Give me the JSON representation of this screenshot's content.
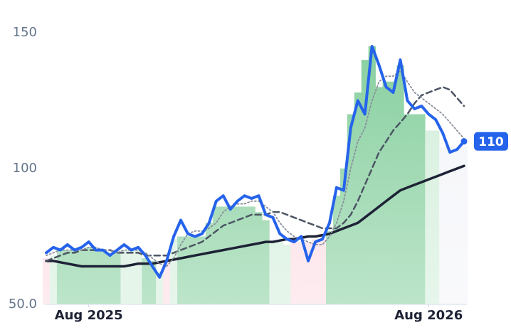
{
  "chart_data": {
    "type": "line",
    "categories": [
      null,
      null,
      null,
      null,
      null,
      null,
      "Aug 2025",
      null,
      null,
      null,
      null,
      null,
      null,
      null,
      null,
      null,
      null,
      null,
      null,
      null,
      null,
      null,
      null,
      null,
      null,
      null,
      null,
      null,
      null,
      null,
      null,
      null,
      null,
      null,
      null,
      null,
      null,
      null,
      null,
      null,
      null,
      null,
      null,
      null,
      null,
      null,
      null,
      null,
      null,
      null,
      null,
      null,
      null,
      null,
      "Aug 2026",
      null,
      null,
      null,
      null,
      null
    ],
    "ylim": [
      50,
      150
    ],
    "yticks": [
      {
        "value": 50,
        "label": "50.0"
      },
      100,
      150
    ],
    "series": [
      {
        "color": "#2563eb",
        "style": "solid-thick",
        "values": [
          69,
          71,
          70,
          72,
          70,
          71,
          73,
          70,
          70,
          68,
          70,
          72,
          70,
          71,
          68,
          64,
          60,
          66,
          75,
          81,
          76,
          75,
          76,
          80,
          88,
          90,
          85,
          88,
          90,
          89,
          90,
          83,
          82,
          76,
          74,
          73,
          75,
          66,
          73,
          74,
          80,
          93,
          92,
          115,
          125,
          120,
          145,
          138,
          130,
          128,
          140,
          125,
          122,
          123,
          120,
          118,
          113,
          106,
          107,
          110
        ]
      },
      {
        "color": "#8a8f9c",
        "style": "dotted",
        "values": [
          68,
          69,
          70,
          70,
          70,
          70,
          71,
          71,
          70,
          70,
          69,
          70,
          70,
          70,
          69,
          67,
          65,
          64,
          67,
          72,
          76,
          77,
          77,
          78,
          80,
          84,
          86,
          87,
          87,
          88,
          88,
          86,
          84,
          80,
          77,
          75,
          74,
          73,
          72,
          72,
          75,
          80,
          88,
          100,
          110,
          115,
          125,
          132,
          134,
          134,
          136,
          132,
          128,
          126,
          124,
          122,
          120,
          117,
          114,
          111
        ]
      },
      {
        "color": "#4b5563",
        "style": "dashed",
        "values": [
          66,
          67,
          68,
          69,
          69,
          70,
          70,
          70,
          70,
          70,
          69,
          69,
          69,
          69,
          68,
          68,
          68,
          68,
          69,
          70,
          71,
          72,
          73,
          75,
          77,
          79,
          80,
          81,
          82,
          83,
          83,
          83,
          84,
          84,
          83,
          82,
          81,
          80,
          79,
          78,
          78,
          78,
          80,
          83,
          88,
          94,
          100,
          106,
          110,
          114,
          117,
          120,
          124,
          127,
          128,
          129,
          130,
          129,
          126,
          123
        ]
      },
      {
        "color": "#1e2235",
        "style": "solid",
        "values": [
          66,
          66,
          65.5,
          65,
          64.5,
          64,
          64,
          64,
          64,
          64,
          64,
          64,
          64.5,
          65,
          65,
          65,
          65.5,
          66,
          66.5,
          67,
          67.5,
          68,
          68.5,
          69,
          69.5,
          70,
          70.5,
          71,
          71.5,
          72,
          72.5,
          73,
          73,
          73.5,
          74,
          74,
          74.5,
          75,
          75,
          75.5,
          76,
          77,
          78,
          79,
          80,
          82,
          84,
          86,
          88,
          90,
          92,
          93,
          94,
          95,
          96,
          97,
          98,
          99,
          100,
          101
        ]
      }
    ],
    "bars": {
      "values": [
        67,
        68,
        70,
        70,
        70,
        70,
        71,
        70,
        70,
        68,
        69,
        70,
        70,
        70,
        67,
        66,
        62,
        66,
        74,
        75,
        75,
        75,
        75,
        80,
        86,
        86,
        86,
        86,
        86,
        86,
        84,
        81,
        73,
        73,
        72,
        73,
        73,
        73,
        74,
        74,
        77,
        90,
        100,
        120,
        128,
        140,
        145,
        130,
        132,
        132,
        138,
        120,
        120,
        120,
        114,
        114,
        108,
        108,
        108,
        108
      ],
      "colors": [
        "#fcdce3",
        "#d3eedb",
        "#86cf9e",
        "#86cf9e",
        "#86cf9e",
        "#86cf9e",
        "#86cf9e",
        "#86cf9e",
        "#86cf9e",
        "#86cf9e",
        "#86cf9e",
        "#d3eedb",
        "#d3eedb",
        "#d3eedb",
        "#86cf9e",
        "#86cf9e",
        "#d3eedb",
        "#fcdce3",
        "#d3eedb",
        "#86cf9e",
        "#86cf9e",
        "#86cf9e",
        "#86cf9e",
        "#86cf9e",
        "#86cf9e",
        "#86cf9e",
        "#86cf9e",
        "#86cf9e",
        "#86cf9e",
        "#86cf9e",
        "#86cf9e",
        "#86cf9e",
        "#d3eedb",
        "#d3eedb",
        "#d3eedb",
        "#fcdce3",
        "#fcdce3",
        "#fcdce3",
        "#fcdce3",
        "#fcdce3",
        "#86cf9e",
        "#86cf9e",
        "#86cf9e",
        "#86cf9e",
        "#86cf9e",
        "#86cf9e",
        "#86cf9e",
        "#86cf9e",
        "#86cf9e",
        "#86cf9e",
        "#86cf9e",
        "#86cf9e",
        "#86cf9e",
        "#86cf9e",
        "#d3eedb",
        "#d3eedb",
        "#f4f5f9",
        "#f4f5f9",
        "#f4f5f9",
        "#f4f5f9"
      ]
    }
  }
}
